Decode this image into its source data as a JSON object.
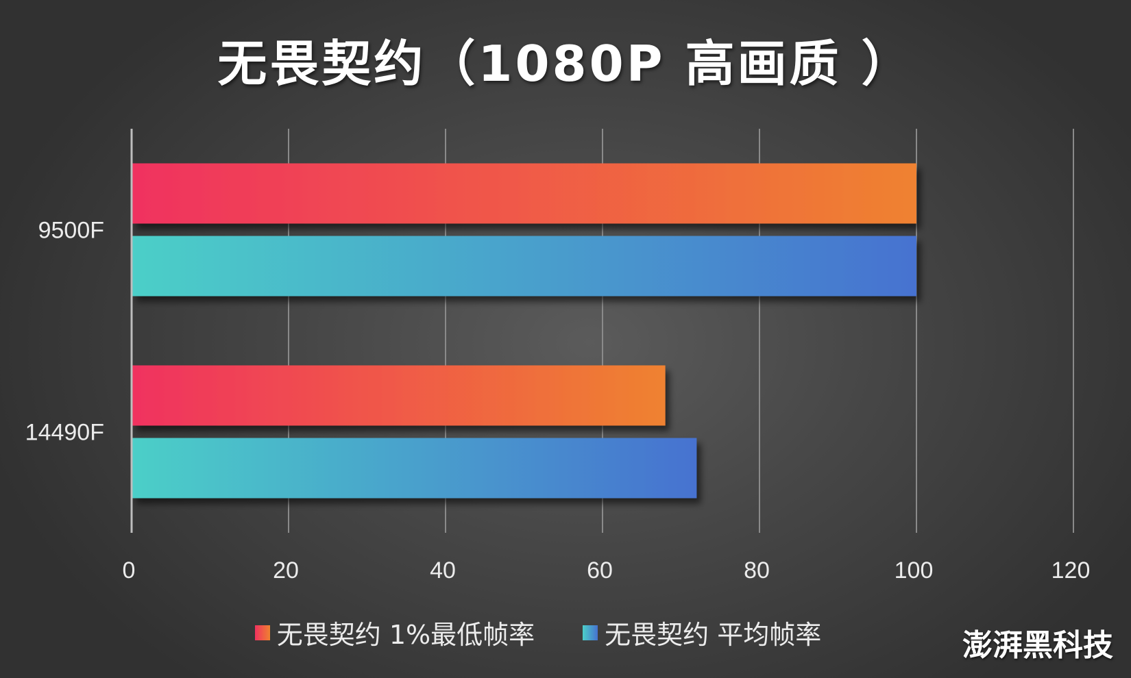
{
  "title": "无畏契约（1080P 高画质 ）",
  "watermark": "澎湃黑科技",
  "chart_data": {
    "type": "bar",
    "orientation": "horizontal",
    "title": "无畏契约（1080P 高画质 ）",
    "categories": [
      "9500F",
      "14490F"
    ],
    "series": [
      {
        "name": "无畏契约 1%最低帧率",
        "values": [
          100,
          68
        ],
        "gradient": [
          "#f0325f",
          "#ef8230"
        ]
      },
      {
        "name": "无畏契约 平均帧率",
        "values": [
          100,
          72
        ],
        "gradient": [
          "#4ccfc8",
          "#4672d0"
        ]
      }
    ],
    "xlim": [
      0,
      120
    ],
    "xticks": [
      "0",
      "20",
      "40",
      "60",
      "80",
      "100",
      "120"
    ],
    "grid": true,
    "legend_position": "bottom"
  }
}
